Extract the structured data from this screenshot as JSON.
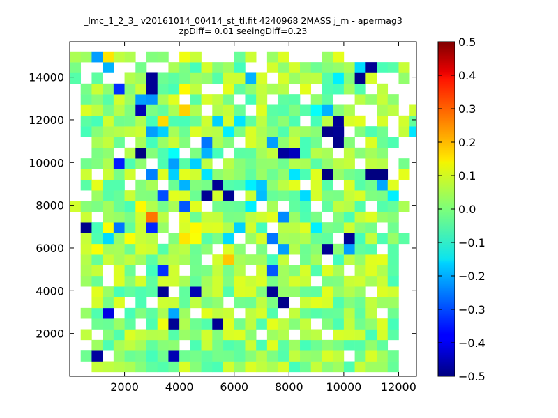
{
  "chart_data": {
    "type": "heatmap",
    "title_lines": [
      "_lmc_1_2_3_ v20161014_00414_st_tl.fit 4240968 2MASS j_m - apermag3",
      "zpDiff= 0.01 seeingDiff=0.23"
    ],
    "xlabel": "",
    "ylabel": "",
    "xlim": [
      0,
      12650
    ],
    "ylim": [
      0,
      15650
    ],
    "x_ticks": [
      2000,
      4000,
      6000,
      8000,
      10000,
      12000
    ],
    "y_ticks": [
      2000,
      4000,
      6000,
      8000,
      10000,
      12000,
      14000
    ],
    "grid": false,
    "colormap": "jet",
    "colorbar": {
      "range": [
        -0.5,
        0.5
      ],
      "ticks": [
        "0.5",
        "0.4",
        "0.3",
        "0.2",
        "0.1",
        "0.0",
        "−0.1",
        "−0.2",
        "−0.3",
        "−0.4",
        "−0.5"
      ]
    },
    "cell_size_x": 400,
    "cell_size_y": 500,
    "cells": [
      [
        2,
        1,
        -0.47
      ],
      [
        2,
        2,
        0.03
      ],
      [
        3,
        2,
        -0.05
      ],
      [
        4,
        2,
        0.04
      ],
      [
        3,
        5,
        -0.4
      ],
      [
        6,
        20,
        -0.5
      ],
      [
        8,
        10,
        0.04
      ],
      [
        9,
        4,
        -0.48
      ],
      [
        8,
        7,
        -0.48
      ],
      [
        13,
        4,
        -0.48
      ],
      [
        11,
        7,
        -0.45
      ],
      [
        7,
        26,
        -0.48
      ],
      [
        7,
        27,
        -0.48
      ],
      [
        3,
        28,
        -0.2
      ],
      [
        1,
        13,
        -0.49
      ],
      [
        1,
        29,
        -0.47
      ],
      [
        12,
        16,
        -0.48
      ],
      [
        13,
        17,
        -0.48
      ],
      [
        14,
        16,
        -0.48
      ],
      [
        18,
        7,
        -0.48
      ],
      [
        19,
        6,
        -0.49
      ],
      [
        19,
        20,
        -0.47
      ],
      [
        23,
        11,
        -0.48
      ],
      [
        24,
        23,
        -0.48
      ],
      [
        25,
        11,
        -0.48
      ],
      [
        25,
        12,
        -0.48
      ],
      [
        26,
        27,
        -0.49
      ],
      [
        27,
        28,
        -0.48
      ],
      [
        23,
        18,
        -0.5
      ],
      [
        27,
        18,
        -0.5
      ],
      [
        28,
        18,
        -0.5
      ],
      [
        23,
        22,
        -0.49
      ],
      [
        24,
        22,
        -0.48
      ],
      [
        24,
        21,
        -0.49
      ],
      [
        15,
        23,
        -0.42
      ],
      [
        20,
        20,
        -0.44
      ],
      [
        2,
        11,
        0.12
      ],
      [
        5,
        12,
        0.12
      ],
      [
        6,
        15,
        0.13
      ],
      [
        8,
        4,
        0.11
      ],
      [
        8,
        23,
        0.16
      ],
      [
        10,
        24,
        0.17
      ],
      [
        10,
        25,
        0.14
      ],
      [
        10,
        26,
        0.13
      ],
      [
        8,
        9,
        -0.33
      ],
      [
        9,
        1,
        -0.45
      ],
      [
        11,
        12,
        0.12
      ],
      [
        11,
        13,
        0.13
      ],
      [
        10,
        29,
        0.11
      ],
      [
        7,
        25,
        -0.23
      ],
      [
        7,
        13,
        -0.34
      ],
      [
        7,
        14,
        0.26
      ],
      [
        9,
        5,
        -0.21
      ],
      [
        8,
        16,
        -0.3
      ],
      [
        10,
        15,
        -0.29
      ],
      [
        9,
        19,
        -0.22
      ],
      [
        9,
        20,
        -0.12
      ],
      [
        4,
        26,
        -0.33
      ],
      [
        4,
        19,
        -0.35
      ],
      [
        4,
        13,
        -0.26
      ],
      [
        6,
        24,
        -0.45
      ],
      [
        6,
        25,
        -0.22
      ],
      [
        7,
        22,
        -0.22
      ],
      [
        7,
        18,
        -0.25
      ],
      [
        8,
        22,
        -0.17
      ],
      [
        10,
        17,
        -0.2
      ],
      [
        9,
        18,
        -0.17
      ],
      [
        12,
        20,
        -0.2
      ],
      [
        12,
        21,
        -0.26
      ],
      [
        13,
        23,
        -0.17
      ],
      [
        14,
        22,
        -0.14
      ],
      [
        15,
        23,
        -0.15
      ],
      [
        16,
        17,
        -0.14
      ],
      [
        17,
        17,
        -0.18
      ],
      [
        18,
        21,
        -0.22
      ],
      [
        18,
        9,
        -0.29
      ],
      [
        19,
        14,
        -0.24
      ],
      [
        20,
        18,
        -0.15
      ],
      [
        21,
        16,
        -0.16
      ],
      [
        22,
        24,
        -0.12
      ],
      [
        22,
        13,
        -0.14
      ],
      [
        23,
        24,
        -0.2
      ],
      [
        24,
        27,
        -0.14
      ],
      [
        25,
        11,
        -0.22
      ],
      [
        26,
        28,
        -0.16
      ],
      [
        28,
        17,
        -0.21
      ],
      [
        29,
        16,
        -0.14
      ],
      [
        3,
        12,
        -0.16
      ],
      [
        14,
        12,
        -0.16
      ],
      [
        15,
        13,
        -0.17
      ],
      [
        16,
        15,
        -0.14
      ],
      [
        17,
        16,
        -0.19
      ],
      [
        12,
        18,
        -0.15
      ],
      [
        11,
        19,
        -0.17
      ],
      [
        1,
        29,
        0.03
      ],
      [
        2,
        29,
        -0.22
      ],
      [
        3,
        29,
        0.15
      ],
      [
        28,
        25,
        0.07
      ],
      [
        29,
        24,
        0.06
      ],
      [
        30,
        23,
        0.08
      ],
      [
        31,
        22,
        -0.15
      ],
      [
        0,
        15,
        0.08
      ],
      [
        3,
        13,
        0.12
      ],
      [
        10,
        12,
        0.15
      ],
      [
        14,
        10,
        0.18
      ],
      [
        16,
        27,
        -0.2
      ],
      [
        18,
        12,
        -0.26
      ],
      [
        19,
        11,
        -0.22
      ]
    ],
    "empty_cells": [
      [
        4,
        28
      ],
      [
        4,
        27
      ],
      [
        3,
        27
      ],
      [
        5,
        28
      ],
      [
        7,
        28
      ],
      [
        8,
        28
      ],
      [
        1,
        27
      ],
      [
        0,
        26
      ],
      [
        0,
        25
      ],
      [
        10,
        25
      ],
      [
        12,
        26
      ],
      [
        13,
        26
      ],
      [
        15,
        25
      ],
      [
        16,
        28
      ],
      [
        17,
        28
      ],
      [
        18,
        27
      ],
      [
        20,
        26
      ],
      [
        21,
        25
      ],
      [
        22,
        26
      ],
      [
        25,
        25
      ],
      [
        27,
        26
      ],
      [
        28,
        27
      ],
      [
        29,
        27
      ],
      [
        30,
        24
      ],
      [
        30,
        25
      ],
      [
        30,
        26
      ],
      [
        31,
        25
      ],
      [
        31,
        26
      ],
      [
        31,
        27
      ],
      [
        31,
        28
      ],
      [
        31,
        29
      ],
      [
        0,
        24
      ],
      [
        0,
        23
      ],
      [
        0,
        22
      ],
      [
        0,
        21
      ],
      [
        0,
        20
      ],
      [
        0,
        19
      ],
      [
        0,
        18
      ],
      [
        0,
        17
      ],
      [
        0,
        16
      ],
      [
        0,
        14
      ],
      [
        0,
        13
      ],
      [
        0,
        12
      ],
      [
        0,
        11
      ],
      [
        0,
        10
      ],
      [
        0,
        9
      ],
      [
        0,
        8
      ],
      [
        0,
        7
      ],
      [
        0,
        6
      ],
      [
        0,
        5
      ],
      [
        0,
        4
      ],
      [
        0,
        3
      ],
      [
        0,
        2
      ],
      [
        0,
        1
      ],
      [
        0,
        0
      ],
      [
        1,
        21
      ],
      [
        1,
        20
      ],
      [
        1,
        16
      ],
      [
        1,
        7
      ],
      [
        1,
        6
      ],
      [
        1,
        4
      ],
      [
        1,
        2
      ],
      [
        1,
        0
      ],
      [
        2,
        18
      ],
      [
        2,
        14
      ],
      [
        2,
        3
      ],
      [
        3,
        9
      ],
      [
        3,
        8
      ],
      [
        3,
        1
      ],
      [
        4,
        20
      ],
      [
        4,
        5
      ],
      [
        5,
        21
      ],
      [
        5,
        17
      ],
      [
        5,
        6
      ],
      [
        6,
        18
      ],
      [
        6,
        9
      ],
      [
        6,
        4
      ],
      [
        7,
        19
      ],
      [
        7,
        6
      ],
      [
        8,
        17
      ],
      [
        8,
        12
      ],
      [
        9,
        14
      ],
      [
        9,
        13
      ],
      [
        9,
        7
      ],
      [
        10,
        20
      ],
      [
        10,
        9
      ],
      [
        10,
        2
      ],
      [
        11,
        21
      ],
      [
        11,
        5
      ],
      [
        12,
        24
      ],
      [
        12,
        15
      ],
      [
        12,
        10
      ],
      [
        13,
        19
      ],
      [
        13,
        11
      ],
      [
        14,
        20
      ],
      [
        14,
        6
      ],
      [
        15,
        21
      ],
      [
        15,
        16
      ],
      [
        15,
        12
      ],
      [
        15,
        5
      ],
      [
        16,
        24
      ],
      [
        16,
        11
      ],
      [
        16,
        9
      ],
      [
        17,
        15
      ],
      [
        17,
        3
      ],
      [
        18,
        25
      ],
      [
        18,
        11
      ],
      [
        18,
        13
      ],
      [
        19,
        15
      ],
      [
        19,
        5
      ],
      [
        20,
        10
      ],
      [
        20,
        6
      ],
      [
        20,
        3
      ],
      [
        21,
        23
      ],
      [
        21,
        17
      ],
      [
        22,
        15
      ],
      [
        22,
        8
      ],
      [
        22,
        4
      ],
      [
        23,
        14
      ],
      [
        23,
        10
      ],
      [
        23,
        3
      ],
      [
        24,
        25
      ],
      [
        24,
        20
      ],
      [
        24,
        17
      ],
      [
        24,
        12
      ],
      [
        25,
        9
      ],
      [
        25,
        1
      ],
      [
        26,
        21
      ],
      [
        26,
        19
      ],
      [
        27,
        15
      ],
      [
        27,
        7
      ],
      [
        28,
        13
      ],
      [
        28,
        11
      ],
      [
        28,
        5
      ],
      [
        29,
        19
      ],
      [
        29,
        2
      ],
      [
        30,
        21
      ],
      [
        30,
        20
      ],
      [
        30,
        17
      ],
      [
        30,
        16
      ],
      [
        30,
        14
      ],
      [
        30,
        13
      ],
      [
        30,
        11
      ],
      [
        30,
        10
      ],
      [
        30,
        9
      ],
      [
        30,
        8
      ],
      [
        30,
        7
      ],
      [
        30,
        6
      ],
      [
        30,
        5
      ],
      [
        30,
        4
      ],
      [
        30,
        3
      ],
      [
        30,
        2
      ],
      [
        30,
        1
      ],
      [
        30,
        0
      ],
      [
        31,
        21
      ],
      [
        31,
        20
      ],
      [
        31,
        19
      ],
      [
        31,
        18
      ],
      [
        31,
        17
      ],
      [
        31,
        16
      ],
      [
        31,
        15
      ],
      [
        31,
        14
      ],
      [
        31,
        13
      ],
      [
        31,
        12
      ],
      [
        31,
        11
      ],
      [
        31,
        10
      ],
      [
        31,
        9
      ],
      [
        31,
        8
      ],
      [
        31,
        7
      ],
      [
        31,
        6
      ],
      [
        31,
        5
      ],
      [
        31,
        4
      ],
      [
        31,
        3
      ],
      [
        31,
        2
      ],
      [
        31,
        1
      ],
      [
        31,
        0
      ],
      [
        29,
        18
      ],
      [
        29,
        20
      ],
      [
        29,
        22
      ],
      [
        29,
        23
      ],
      [
        29,
        26
      ],
      [
        26,
        24
      ],
      [
        27,
        24
      ],
      [
        27,
        23
      ],
      [
        25,
        22
      ],
      [
        23,
        21
      ],
      [
        1,
        28
      ],
      [
        2,
        28
      ],
      [
        6,
        29
      ],
      [
        9,
        29
      ],
      [
        12,
        29
      ],
      [
        13,
        29
      ],
      [
        14,
        29
      ],
      [
        17,
        29
      ],
      [
        20,
        29
      ],
      [
        21,
        29
      ],
      [
        22,
        29
      ],
      [
        25,
        29
      ],
      [
        26,
        29
      ],
      [
        27,
        29
      ],
      [
        28,
        29
      ],
      [
        29,
        29
      ],
      [
        30,
        29
      ]
    ],
    "x_columns": 32,
    "y_rows": 30,
    "x_start": 0,
    "y_start": 200,
    "seed": 42
  }
}
